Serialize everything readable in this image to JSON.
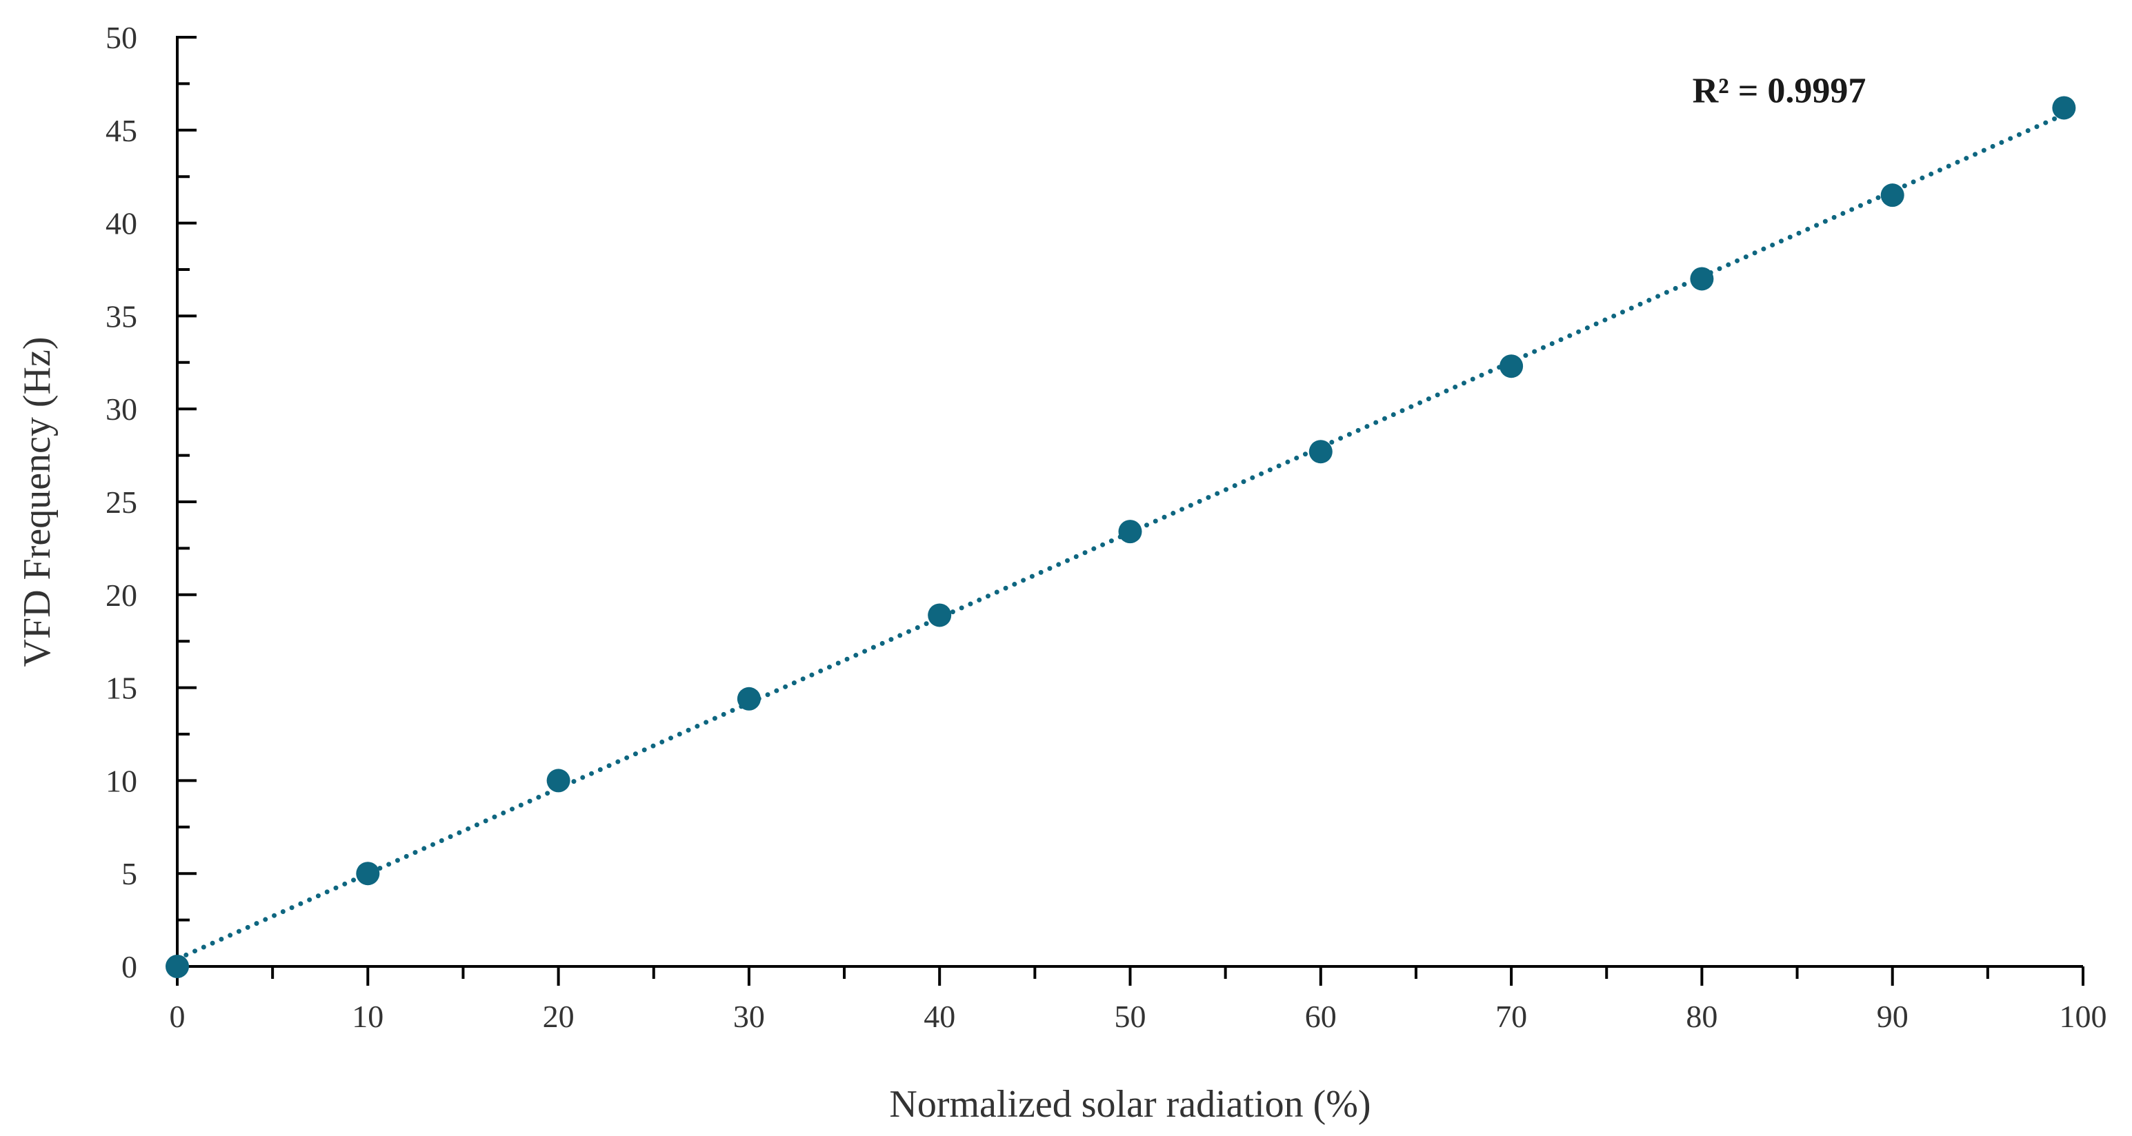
{
  "chart_data": {
    "type": "scatter",
    "title": "",
    "xlabel": "Normalized solar radiation (%)",
    "ylabel": "VFD Frequency (Hz)",
    "xlim": [
      0,
      100
    ],
    "ylim": [
      0,
      50
    ],
    "xticks": [
      0,
      10,
      20,
      30,
      40,
      50,
      60,
      70,
      80,
      90,
      100
    ],
    "yticks": [
      0,
      5,
      10,
      15,
      20,
      25,
      30,
      35,
      40,
      45,
      50
    ],
    "x_minor_step": 5,
    "y_minor_step": 2.5,
    "grid": false,
    "legend": "none",
    "series": [
      {
        "x": [
          0,
          10,
          20,
          30,
          40,
          50,
          60,
          70,
          80,
          90,
          99
        ],
        "y": [
          0,
          5.0,
          10.0,
          14.4,
          18.9,
          23.4,
          27.7,
          32.3,
          37.0,
          41.5,
          46.2
        ]
      }
    ],
    "trendline": {
      "type": "linear",
      "style": "dotted",
      "x_range": [
        0,
        99
      ]
    },
    "annotations": [
      {
        "text": "R² = 0.9997"
      }
    ],
    "colors": {
      "series": "#0e6680",
      "axis": "#000000",
      "text": "#333333"
    }
  }
}
